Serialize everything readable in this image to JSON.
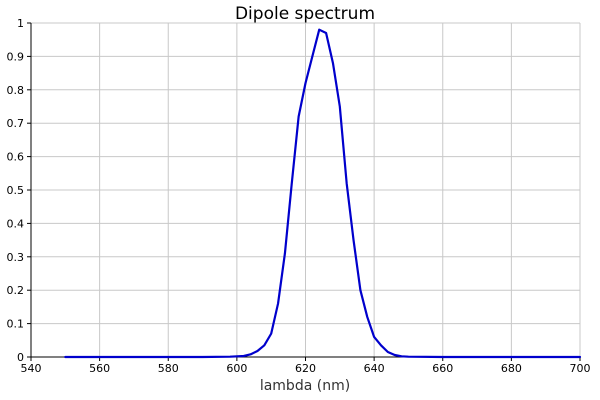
{
  "chart_data": {
    "type": "line",
    "title": "Dipole spectrum",
    "xlabel": "lambda (nm)",
    "ylabel": "",
    "xlim": [
      540,
      700
    ],
    "ylim": [
      0,
      1
    ],
    "xticks": [
      540,
      560,
      580,
      600,
      620,
      640,
      660,
      680,
      700
    ],
    "yticks": [
      0,
      0.1,
      0.2,
      0.3,
      0.4,
      0.5,
      0.6,
      0.7,
      0.8,
      0.9,
      1
    ],
    "grid": true,
    "color": "#0000cc",
    "series": [
      {
        "x": [
          550,
          560,
          570,
          580,
          590,
          598,
          602,
          604,
          606,
          608,
          610,
          612,
          614,
          616,
          618,
          620,
          622,
          624,
          626,
          628,
          630,
          632,
          634,
          636,
          638,
          640,
          642,
          644,
          646,
          648,
          650,
          660,
          670,
          680,
          690,
          700
        ],
        "y": [
          0,
          0,
          0,
          0,
          0,
          0.001,
          0.003,
          0.008,
          0.018,
          0.035,
          0.07,
          0.16,
          0.31,
          0.52,
          0.72,
          0.82,
          0.9,
          0.98,
          0.97,
          0.88,
          0.75,
          0.52,
          0.35,
          0.2,
          0.12,
          0.06,
          0.035,
          0.015,
          0.006,
          0.002,
          0.001,
          0,
          0,
          0,
          0,
          0
        ]
      }
    ]
  }
}
